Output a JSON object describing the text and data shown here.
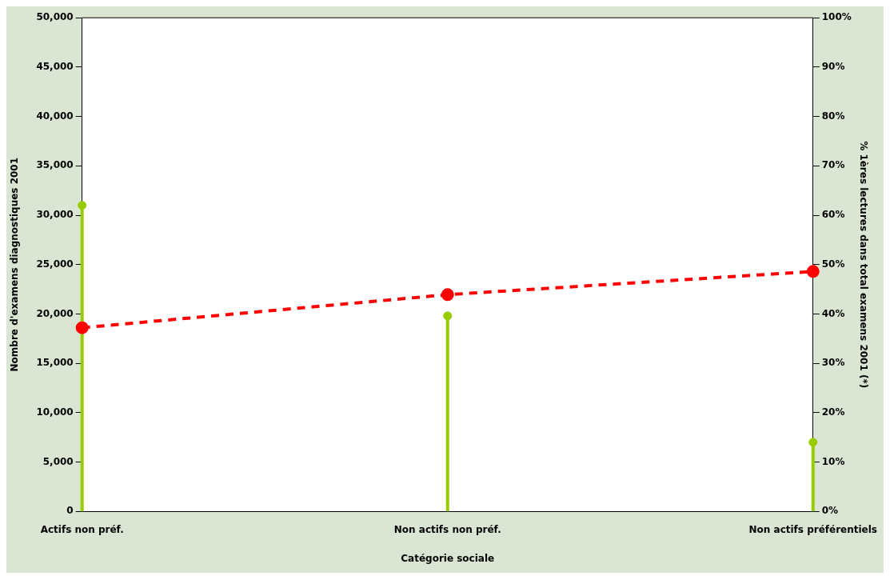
{
  "chart_data": {
    "type": "lollipop",
    "xlabel": "Catégorie sociale",
    "ylabel": "Nombre d'examens diagnostiques 2001",
    "y2label": "% 1ères lectures dans total examens 2001 (*)",
    "categories": [
      "Actifs non préf.",
      "Non actifs non préf.",
      "Non actifs préférentiels"
    ],
    "series": [
      {
        "color": "#99cc00",
        "values": [
          31000,
          19800,
          7000
        ]
      },
      {
        "type": "line",
        "axis": "y2",
        "color": "#ff0000",
        "values": [
          37.2,
          43.9,
          48.6
        ],
        "marker": "circle",
        "line_style": "dashed"
      }
    ],
    "ylim": [
      0,
      50000
    ],
    "yticks": [
      {
        "value": 0,
        "label": "0"
      },
      {
        "value": 5000,
        "label": "5,000"
      },
      {
        "value": 10000,
        "label": "10,000"
      },
      {
        "value": 15000,
        "label": "15,000"
      },
      {
        "value": 20000,
        "label": "20,000"
      },
      {
        "value": 25000,
        "label": "25,000"
      },
      {
        "value": 30000,
        "label": "30,000"
      },
      {
        "value": 35000,
        "label": "35,000"
      },
      {
        "value": 40000,
        "label": "40,000"
      },
      {
        "value": 45000,
        "label": "45,000"
      },
      {
        "value": 50000,
        "label": "50,000"
      }
    ],
    "y2lim": [
      0,
      100
    ],
    "y2ticks": [
      {
        "value": 0,
        "label": "0%"
      },
      {
        "value": 10,
        "label": "10%"
      },
      {
        "value": 20,
        "label": "20%"
      },
      {
        "value": 30,
        "label": "30%"
      },
      {
        "value": 40,
        "label": "40%"
      },
      {
        "value": 50,
        "label": "50%"
      },
      {
        "value": 60,
        "label": "60%"
      },
      {
        "value": 70,
        "label": "70%"
      },
      {
        "value": 80,
        "label": "80%"
      },
      {
        "value": 90,
        "label": "90%"
      },
      {
        "value": 100,
        "label": "100%"
      }
    ],
    "grid": false,
    "legend": false
  }
}
